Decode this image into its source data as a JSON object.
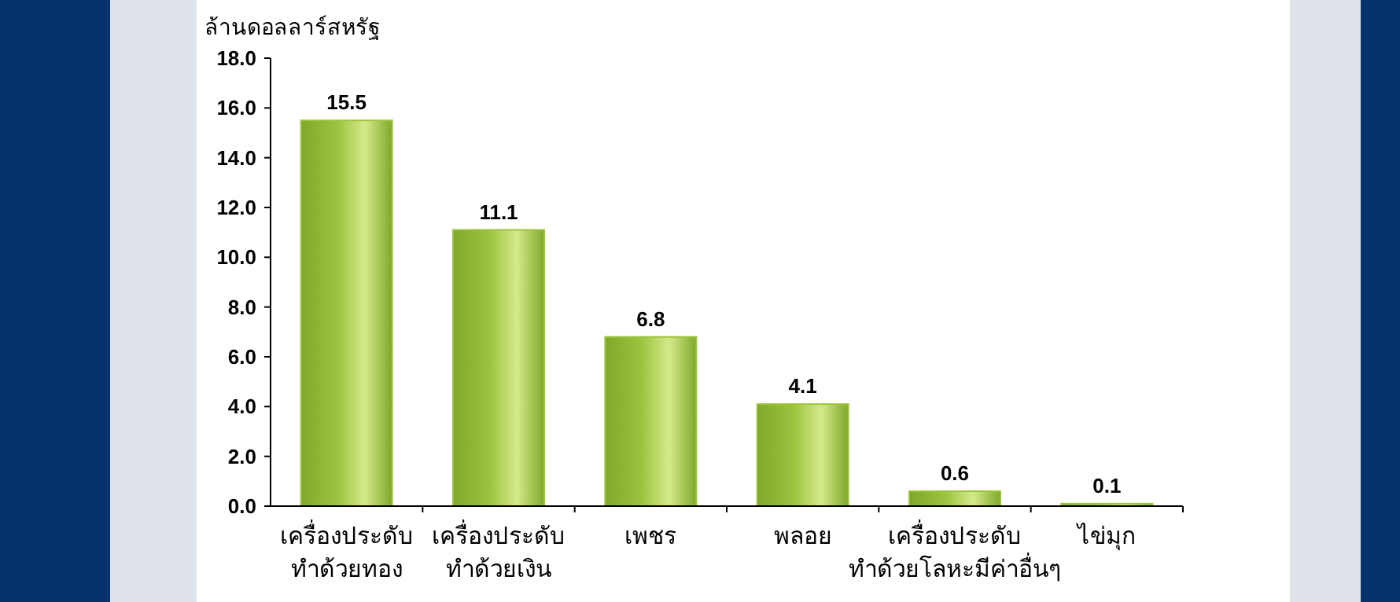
{
  "chart_data": {
    "type": "bar",
    "ylabel": "ล้านดอลลาร์สหรัฐ",
    "categories": [
      "เครื่องประดับ ทำด้วยทอง",
      "เครื่องประดับ ทำด้วยเงิน",
      "เพชร",
      "พลอย",
      "เครื่องประดับ ทำด้วยโลหะมีค่าอื่นๆ",
      "ไข่มุก"
    ],
    "values": [
      15.5,
      11.1,
      6.8,
      4.1,
      0.6,
      0.1
    ],
    "color": "#9dc43f",
    "ylim": [
      0,
      18
    ],
    "yticks": [
      {
        "value": 0,
        "label": "0.0"
      },
      {
        "value": 2,
        "label": "2.0"
      },
      {
        "value": 4,
        "label": "4.0"
      },
      {
        "value": 6,
        "label": "6.0"
      },
      {
        "value": 8,
        "label": "8.0"
      },
      {
        "value": 10,
        "label": "10.0"
      },
      {
        "value": 12,
        "label": "12.0"
      },
      {
        "value": 14,
        "label": "14.0"
      },
      {
        "value": 16,
        "label": "16.0"
      },
      {
        "value": 18,
        "label": "18.0"
      }
    ],
    "data_labels": true,
    "grid": false
  }
}
